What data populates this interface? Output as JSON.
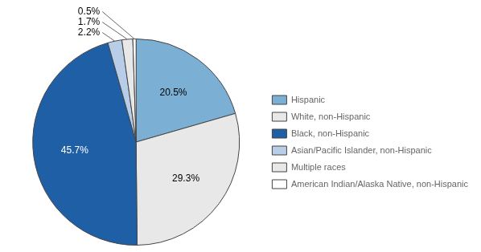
{
  "chart_data": {
    "type": "pie",
    "categories": [
      "Hispanic",
      "White, non-Hispanic",
      "Black, non-Hispanic",
      "Asian/Pacific Islander, non-Hispanic",
      "Multiple races",
      "American Indian/Alaska Native, non-Hispanic"
    ],
    "values": [
      20.5,
      29.3,
      45.7,
      2.2,
      1.7,
      0.5
    ],
    "value_labels": [
      "20.5%",
      "29.3%",
      "45.7%",
      "2.2%",
      "1.7%",
      "0.5%"
    ],
    "colors": [
      "#7BAFD4",
      "#E8E8E8",
      "#1F5FA6",
      "#B8CEE8",
      "#E8E8E8",
      "#FFFFFF"
    ],
    "data_labels": true,
    "legend": "right"
  }
}
